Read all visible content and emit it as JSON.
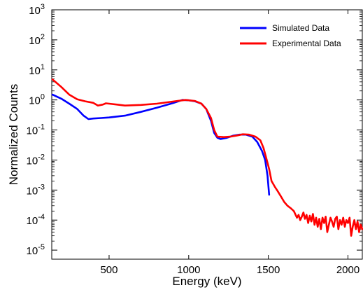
{
  "chart_data": {
    "type": "line",
    "title": "",
    "xlabel": "Energy (keV)",
    "ylabel": "Normalized Counts",
    "xlim": [
      140,
      2090
    ],
    "ylim": [
      5e-06,
      1000
    ],
    "y_scale": "log",
    "grid": false,
    "legend_position": "top-right",
    "x_ticks": [
      500,
      1000,
      1500,
      2000
    ],
    "x_tick_labels": [
      "500",
      "1000",
      "1500",
      "2000"
    ],
    "y_ticks": [
      {
        "value": 1e-05,
        "base": "10",
        "exp": "-5"
      },
      {
        "value": 0.0001,
        "base": "10",
        "exp": "-4"
      },
      {
        "value": 0.001,
        "base": "10",
        "exp": "-3"
      },
      {
        "value": 0.01,
        "base": "10",
        "exp": "-2"
      },
      {
        "value": 0.1,
        "base": "10",
        "exp": "-1"
      },
      {
        "value": 1,
        "base": "10",
        "exp": "0"
      },
      {
        "value": 10,
        "base": "10",
        "exp": "1"
      },
      {
        "value": 100,
        "base": "10",
        "exp": "2"
      },
      {
        "value": 1000,
        "base": "10",
        "exp": "3"
      }
    ],
    "series": [
      {
        "name": "Simulated Data",
        "color": "#0000ff",
        "points": [
          [
            145,
            1.5
          ],
          [
            200,
            1.1
          ],
          [
            250,
            0.75
          ],
          [
            300,
            0.5
          ],
          [
            340,
            0.3
          ],
          [
            370,
            0.23
          ],
          [
            400,
            0.24
          ],
          [
            450,
            0.25
          ],
          [
            500,
            0.26
          ],
          [
            600,
            0.3
          ],
          [
            700,
            0.4
          ],
          [
            800,
            0.55
          ],
          [
            900,
            0.78
          ],
          [
            960,
            1.0
          ],
          [
            1000,
            0.97
          ],
          [
            1040,
            0.9
          ],
          [
            1080,
            0.75
          ],
          [
            1110,
            0.5
          ],
          [
            1140,
            0.2
          ],
          [
            1160,
            0.08
          ],
          [
            1180,
            0.055
          ],
          [
            1200,
            0.05
          ],
          [
            1240,
            0.055
          ],
          [
            1280,
            0.065
          ],
          [
            1320,
            0.07
          ],
          [
            1360,
            0.07
          ],
          [
            1400,
            0.06
          ],
          [
            1430,
            0.04
          ],
          [
            1460,
            0.02
          ],
          [
            1480,
            0.01
          ],
          [
            1495,
            0.003
          ],
          [
            1505,
            0.0007
          ]
        ]
      },
      {
        "name": "Experimental Data",
        "color": "#ff0000",
        "points": [
          [
            145,
            4.8
          ],
          [
            200,
            2.7
          ],
          [
            250,
            1.5
          ],
          [
            300,
            1.05
          ],
          [
            350,
            0.9
          ],
          [
            400,
            0.8
          ],
          [
            430,
            0.65
          ],
          [
            460,
            0.7
          ],
          [
            480,
            0.77
          ],
          [
            500,
            0.75
          ],
          [
            550,
            0.7
          ],
          [
            600,
            0.65
          ],
          [
            700,
            0.68
          ],
          [
            800,
            0.75
          ],
          [
            900,
            0.88
          ],
          [
            980,
            1.0
          ],
          [
            1040,
            0.92
          ],
          [
            1080,
            0.75
          ],
          [
            1110,
            0.5
          ],
          [
            1140,
            0.25
          ],
          [
            1160,
            0.1
          ],
          [
            1180,
            0.06
          ],
          [
            1220,
            0.058
          ],
          [
            1260,
            0.06
          ],
          [
            1300,
            0.065
          ],
          [
            1340,
            0.072
          ],
          [
            1380,
            0.07
          ],
          [
            1420,
            0.06
          ],
          [
            1450,
            0.045
          ],
          [
            1470,
            0.025
          ],
          [
            1490,
            0.01
          ],
          [
            1505,
            0.005
          ],
          [
            1520,
            0.002
          ],
          [
            1540,
            0.0013
          ],
          [
            1560,
            0.0009
          ],
          [
            1580,
            0.0006
          ],
          [
            1600,
            0.0004
          ],
          [
            1620,
            0.0003
          ],
          [
            1640,
            0.00025
          ],
          [
            1660,
            0.0002
          ],
          [
            1680,
            0.00012
          ],
          [
            1690,
            0.00015
          ],
          [
            1700,
            0.0001
          ],
          [
            1710,
            0.00013
          ],
          [
            1720,
            0.00018
          ],
          [
            1730,
            0.00011
          ],
          [
            1740,
            0.00015
          ],
          [
            1750,
            8e-05
          ],
          [
            1760,
            0.00014
          ],
          [
            1770,
            9e-05
          ],
          [
            1780,
            0.00016
          ],
          [
            1790,
            7e-05
          ],
          [
            1800,
            0.00012
          ],
          [
            1810,
            6e-05
          ],
          [
            1820,
            0.00011
          ],
          [
            1830,
            5e-05
          ],
          [
            1840,
            0.00012
          ],
          [
            1850,
            8e-05
          ],
          [
            1860,
            0.00013
          ],
          [
            1870,
            4e-05
          ],
          [
            1880,
            7e-05
          ],
          [
            1890,
            0.00012
          ],
          [
            1900,
            9e-05
          ],
          [
            1910,
            6e-05
          ],
          [
            1920,
            0.00011
          ],
          [
            1930,
            0.00013
          ],
          [
            1940,
            5e-05
          ],
          [
            1950,
            0.0001
          ],
          [
            1960,
            7e-05
          ],
          [
            1970,
            0.00012
          ],
          [
            1980,
            6e-05
          ],
          [
            1990,
            0.0001
          ],
          [
            2000,
            8e-05
          ],
          [
            2010,
            0.00012
          ],
          [
            2020,
            3e-05
          ],
          [
            2030,
            6e-05
          ],
          [
            2040,
            0.0001
          ],
          [
            2050,
            5e-05
          ],
          [
            2060,
            9e-05
          ],
          [
            2070,
            4e-05
          ],
          [
            2080,
            7e-05
          ],
          [
            2090,
            5e-05
          ]
        ]
      }
    ]
  }
}
